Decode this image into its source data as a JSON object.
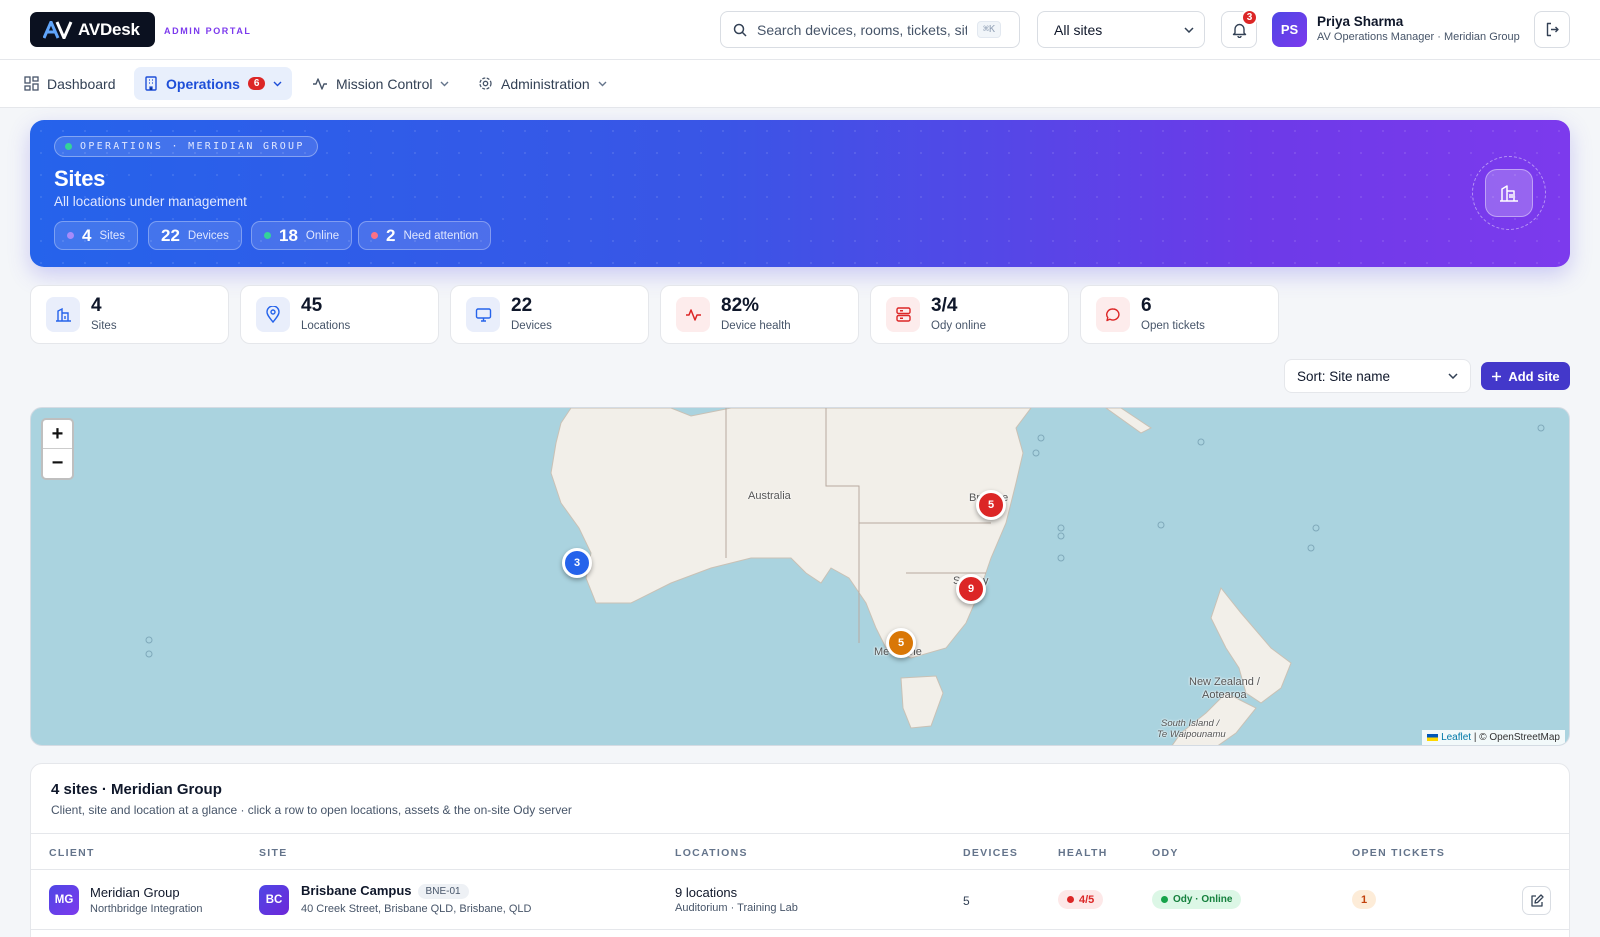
{
  "brand": {
    "name": "AVDesk",
    "portal": "ADMIN PORTAL"
  },
  "search": {
    "placeholder": "Search devices, rooms, tickets, sites",
    "shortcut": "⌘K"
  },
  "site_filter": {
    "value": "All sites"
  },
  "notifications": {
    "count": "3"
  },
  "user": {
    "initials": "PS",
    "name": "Priya Sharma",
    "role": "AV Operations Manager · Meridian Group"
  },
  "nav": [
    {
      "label": "Dashboard",
      "icon": "grid-icon"
    },
    {
      "label": "Operations",
      "icon": "building-icon",
      "badge": "6",
      "active": true
    },
    {
      "label": "Mission Control",
      "icon": "activity-icon"
    },
    {
      "label": "Administration",
      "icon": "gear-icon"
    }
  ],
  "hero": {
    "eyebrow": "OPERATIONS · MERIDIAN GROUP",
    "title": "Sites",
    "subtitle": "All locations under management",
    "chips": [
      {
        "value": "4",
        "label": "Sites",
        "dot": "#a78bfa"
      },
      {
        "value": "22",
        "label": "Devices"
      },
      {
        "value": "18",
        "label": "Online",
        "dot": "#34d399"
      },
      {
        "value": "2",
        "label": "Need attention",
        "dot": "#fb7185"
      }
    ]
  },
  "stats": [
    {
      "value": "4",
      "label": "Sites",
      "icon": "building-icon",
      "bg": "#e9eefb",
      "fg": "#2563eb"
    },
    {
      "value": "45",
      "label": "Locations",
      "icon": "pin-icon",
      "bg": "#e9eefb",
      "fg": "#2563eb"
    },
    {
      "value": "22",
      "label": "Devices",
      "icon": "monitor-icon",
      "bg": "#e9eefb",
      "fg": "#2563eb"
    },
    {
      "value": "82%",
      "label": "Device health",
      "icon": "pulse-icon",
      "bg": "#fdecec",
      "fg": "#dc2626"
    },
    {
      "value": "3/4",
      "label": "Ody online",
      "icon": "server-icon",
      "bg": "#fdecec",
      "fg": "#dc2626"
    },
    {
      "value": "6",
      "label": "Open tickets",
      "icon": "chat-icon",
      "bg": "#fdecec",
      "fg": "#dc2626"
    }
  ],
  "toolbar": {
    "sort": "Sort: Site name",
    "add": "Add site"
  },
  "map": {
    "zoom_in": "+",
    "zoom_out": "−",
    "labels": {
      "australia": "Australia",
      "brisbane_a": "Br",
      "brisbane_b": "ne",
      "sydney_a": "S",
      "sydney_b": "y",
      "melbourne_a": "Me",
      "melbourne_b": "rne",
      "nz": "New Zealand /",
      "nz2": "Aotearoa",
      "si": "South Island /",
      "si2": "Te Waipounamu"
    },
    "markers": [
      {
        "count": "3",
        "color": "#2563eb"
      },
      {
        "count": "5",
        "color": "#dc2626"
      },
      {
        "count": "9",
        "color": "#dc2626"
      },
      {
        "count": "5",
        "color": "#d97706"
      }
    ],
    "attribution_leaflet": "Leaflet",
    "attribution_osm": "| © OpenStreetMap"
  },
  "table": {
    "title": "4 sites · Meridian Group",
    "subtitle": "Client, site and location at a glance · click a row to open locations, assets & the on-site Ody server",
    "columns": [
      "CLIENT",
      "SITE",
      "LOCATIONS",
      "DEVICES",
      "HEALTH",
      "ODY",
      "OPEN TICKETS"
    ],
    "rows": [
      {
        "client_initials": "MG",
        "client": "Meridian Group",
        "client_sub": "Northbridge Integration",
        "site_initials": "BC",
        "site": "Brisbane Campus",
        "site_code": "BNE-01",
        "address": "40 Creek Street, Brisbane QLD, Brisbane, QLD",
        "locations": "9 locations",
        "locations_sub": "Auditorium · Training Lab",
        "devices": "5",
        "health": "4/5",
        "ody": "Ody · Online",
        "tickets": "1"
      }
    ]
  }
}
